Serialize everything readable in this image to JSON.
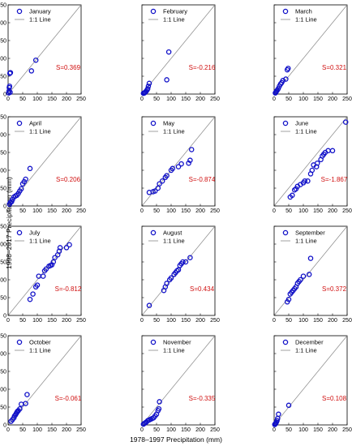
{
  "figure": {
    "ylabel": "1998–2017 Precipitation (mm)",
    "xlabel": "1978–1997 Precipitation (mm)",
    "legend_line_label": "1:1 Line",
    "marker_color": "#1010c8",
    "stat_color": "#d01010",
    "line_color": "#888888"
  },
  "chart_data": [
    {
      "type": "scatter",
      "month": "January",
      "stat": "S=0.369",
      "xlim": [
        0,
        250
      ],
      "ylim": [
        0,
        250
      ],
      "ticks": [
        0,
        50,
        100,
        150,
        200,
        250
      ],
      "x": [
        2,
        3,
        4,
        5,
        6,
        7,
        8,
        80,
        95
      ],
      "y": [
        3,
        8,
        18,
        22,
        58,
        5,
        60,
        65,
        95
      ]
    },
    {
      "type": "scatter",
      "month": "February",
      "stat": "S=-0.216",
      "xlim": [
        0,
        250
      ],
      "ylim": [
        0,
        250
      ],
      "ticks": [
        0,
        50,
        100,
        150,
        200,
        250
      ],
      "x": [
        5,
        8,
        10,
        12,
        15,
        18,
        20,
        22,
        25,
        85,
        92
      ],
      "y": [
        2,
        3,
        4,
        6,
        8,
        12,
        15,
        22,
        30,
        40,
        118
      ]
    },
    {
      "type": "scatter",
      "month": "March",
      "stat": "S=0.321",
      "xlim": [
        0,
        250
      ],
      "ylim": [
        0,
        250
      ],
      "ticks": [
        0,
        50,
        100,
        150,
        200,
        250
      ],
      "x": [
        4,
        6,
        8,
        10,
        14,
        18,
        22,
        26,
        30,
        40,
        45,
        48
      ],
      "y": [
        3,
        5,
        8,
        10,
        15,
        22,
        28,
        32,
        38,
        42,
        68,
        72
      ]
    },
    {
      "type": "scatter",
      "month": "April",
      "stat": "S=0.206",
      "xlim": [
        0,
        250
      ],
      "ylim": [
        0,
        250
      ],
      "ticks": [
        0,
        50,
        100,
        150,
        200,
        250
      ],
      "x": [
        5,
        8,
        12,
        15,
        20,
        25,
        30,
        35,
        40,
        45,
        50,
        55,
        60,
        75
      ],
      "y": [
        5,
        10,
        12,
        18,
        25,
        28,
        30,
        35,
        42,
        48,
        62,
        68,
        75,
        105
      ]
    },
    {
      "type": "scatter",
      "month": "May",
      "stat": "S=-0.874",
      "xlim": [
        0,
        250
      ],
      "ylim": [
        0,
        250
      ],
      "ticks": [
        0,
        50,
        100,
        150,
        200,
        250
      ],
      "x": [
        25,
        38,
        45,
        55,
        60,
        70,
        80,
        85,
        100,
        105,
        125,
        135,
        160,
        165,
        170
      ],
      "y": [
        38,
        40,
        42,
        50,
        62,
        70,
        80,
        85,
        100,
        105,
        110,
        118,
        120,
        128,
        158
      ]
    },
    {
      "type": "scatter",
      "month": "June",
      "stat": "S=-1.867",
      "xlim": [
        0,
        250
      ],
      "ylim": [
        0,
        250
      ],
      "ticks": [
        0,
        50,
        100,
        150,
        200,
        250
      ],
      "x": [
        55,
        62,
        70,
        75,
        80,
        90,
        100,
        105,
        115,
        125,
        130,
        135,
        145,
        148,
        160,
        165,
        170,
        175,
        185,
        200,
        245
      ],
      "y": [
        25,
        30,
        45,
        48,
        55,
        60,
        65,
        70,
        70,
        90,
        100,
        115,
        110,
        120,
        130,
        140,
        145,
        150,
        155,
        155,
        235
      ]
    },
    {
      "type": "scatter",
      "month": "July",
      "stat": "S=-0.812",
      "xlim": [
        0,
        250
      ],
      "ylim": [
        0,
        250
      ],
      "ticks": [
        0,
        50,
        100,
        150,
        200,
        250
      ],
      "x": [
        75,
        85,
        95,
        100,
        105,
        120,
        125,
        130,
        140,
        145,
        150,
        155,
        160,
        170,
        175,
        178,
        200,
        210
      ],
      "y": [
        45,
        60,
        80,
        85,
        110,
        110,
        125,
        130,
        138,
        140,
        142,
        150,
        162,
        170,
        180,
        190,
        190,
        198
      ]
    },
    {
      "type": "scatter",
      "month": "August",
      "stat": "S=0.434",
      "xlim": [
        0,
        250
      ],
      "ylim": [
        0,
        250
      ],
      "ticks": [
        0,
        50,
        100,
        150,
        200,
        250
      ],
      "x": [
        25,
        75,
        80,
        85,
        95,
        100,
        110,
        115,
        120,
        125,
        130,
        135,
        140,
        150,
        165
      ],
      "y": [
        28,
        70,
        80,
        90,
        100,
        105,
        115,
        120,
        125,
        128,
        140,
        145,
        150,
        150,
        162
      ]
    },
    {
      "type": "scatter",
      "month": "September",
      "stat": "S=0.372",
      "xlim": [
        0,
        250
      ],
      "ylim": [
        0,
        250
      ],
      "ticks": [
        0,
        50,
        100,
        150,
        200,
        250
      ],
      "x": [
        45,
        50,
        55,
        60,
        65,
        70,
        75,
        80,
        85,
        90,
        100,
        120,
        125
      ],
      "y": [
        38,
        45,
        60,
        65,
        70,
        75,
        80,
        90,
        95,
        100,
        110,
        115,
        160
      ]
    },
    {
      "type": "scatter",
      "month": "October",
      "stat": "S=-0.061",
      "xlim": [
        0,
        250
      ],
      "ylim": [
        0,
        250
      ],
      "ticks": [
        0,
        50,
        100,
        150,
        200,
        250
      ],
      "x": [
        10,
        15,
        20,
        22,
        25,
        28,
        30,
        32,
        35,
        40,
        45,
        60,
        65
      ],
      "y": [
        10,
        15,
        20,
        25,
        28,
        32,
        35,
        38,
        40,
        45,
        58,
        60,
        85
      ]
    },
    {
      "type": "scatter",
      "month": "November",
      "stat": "S=-0.335",
      "xlim": [
        0,
        250
      ],
      "ylim": [
        0,
        250
      ],
      "ticks": [
        0,
        50,
        100,
        150,
        200,
        250
      ],
      "x": [
        5,
        8,
        12,
        15,
        20,
        25,
        30,
        35,
        40,
        45,
        50,
        55,
        58,
        60
      ],
      "y": [
        2,
        4,
        6,
        8,
        12,
        14,
        16,
        18,
        20,
        25,
        30,
        40,
        45,
        65
      ]
    },
    {
      "type": "scatter",
      "month": "December",
      "stat": "S=0.108",
      "xlim": [
        0,
        250
      ],
      "ylim": [
        0,
        250
      ],
      "ticks": [
        0,
        50,
        100,
        150,
        200,
        250
      ],
      "x": [
        2,
        3,
        4,
        5,
        6,
        8,
        10,
        12,
        15,
        50
      ],
      "y": [
        1,
        2,
        3,
        4,
        5,
        8,
        12,
        18,
        30,
        55
      ]
    }
  ]
}
